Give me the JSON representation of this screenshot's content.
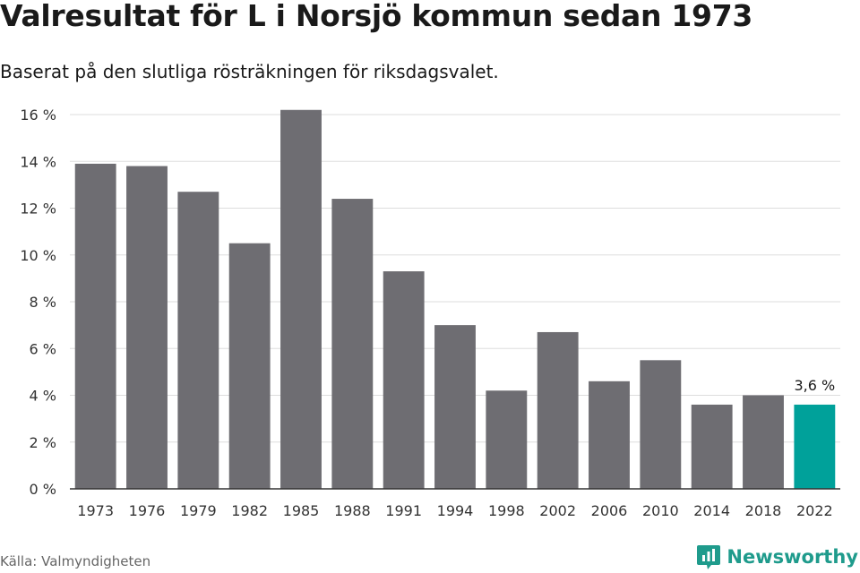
{
  "title": "Valresultat för L i Norsjö kommun sedan 1973",
  "subtitle": "Baserat på den slutliga rösträkningen för riksdagsvalet.",
  "source": "Källa: Valmyndigheten",
  "brand": {
    "name": "Newsworthy",
    "icon": "newsworthy-logo-icon",
    "color": "#1f9b8c"
  },
  "chart_data": {
    "type": "bar",
    "categories": [
      "1973",
      "1976",
      "1979",
      "1982",
      "1985",
      "1988",
      "1991",
      "1994",
      "1998",
      "2002",
      "2006",
      "2010",
      "2014",
      "2018",
      "2022"
    ],
    "values": [
      13.9,
      13.8,
      12.7,
      10.5,
      16.2,
      12.4,
      9.3,
      7.0,
      4.2,
      6.7,
      4.6,
      5.5,
      3.6,
      4.0,
      3.6
    ],
    "y_ticks": [
      "0 %",
      "2 %",
      "4 %",
      "6 %",
      "8 %",
      "10 %",
      "12 %",
      "14 %",
      "16 %"
    ],
    "ylim": [
      0,
      16
    ],
    "grid": true,
    "bar_color": "#6e6d72",
    "highlight_color": "#00a19a",
    "highlight_index": 14,
    "value_label": "3,6 %"
  }
}
